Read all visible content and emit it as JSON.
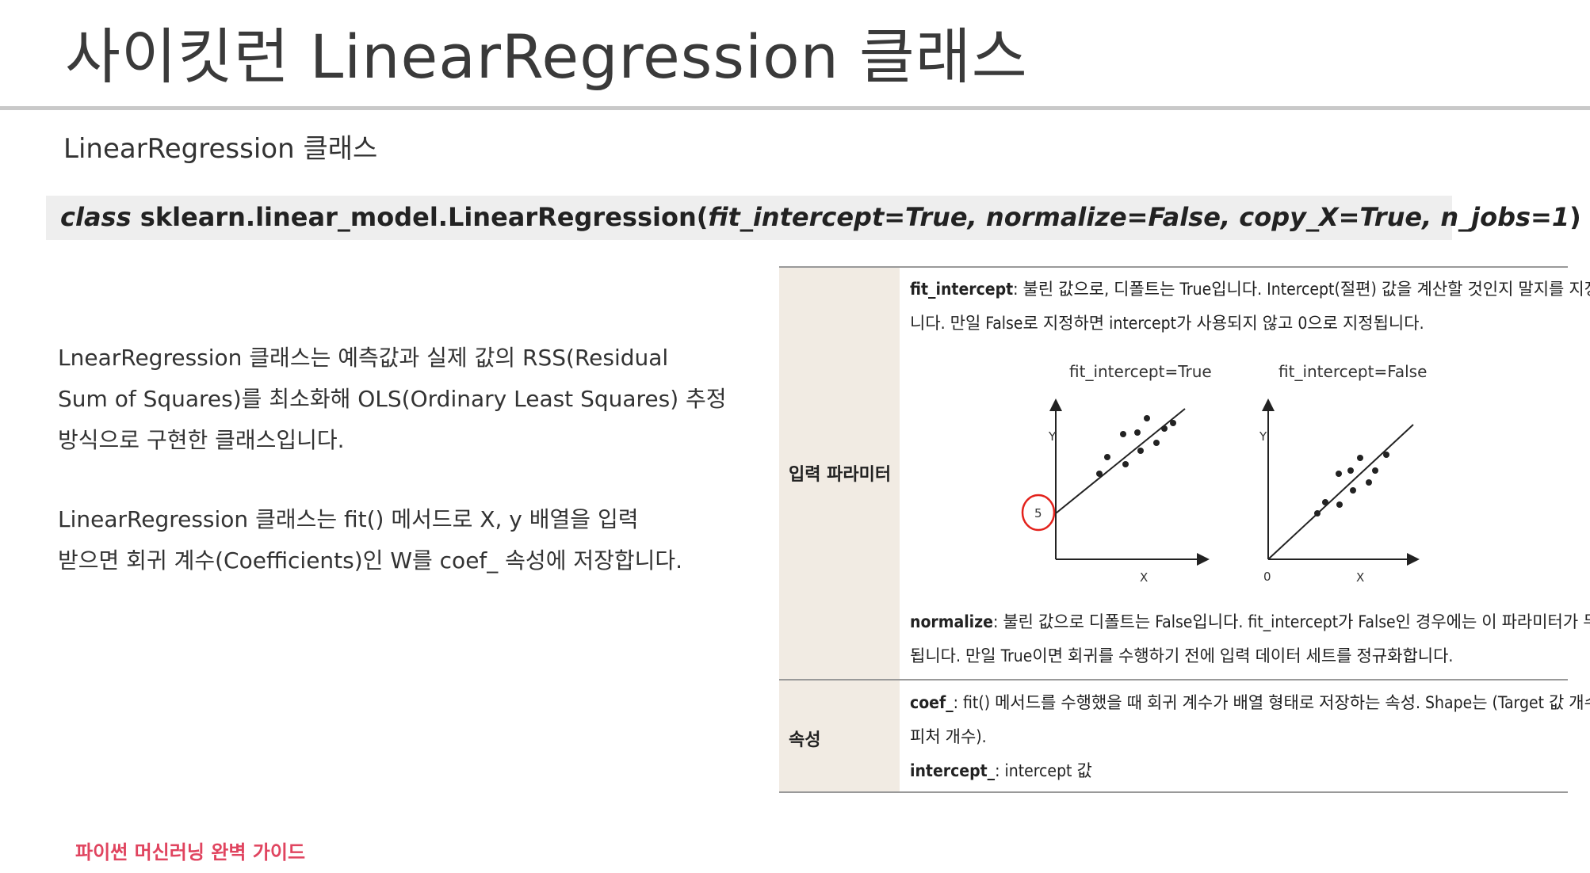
{
  "slide": {
    "title": "사이킷런 LinearRegression 클래스",
    "subtitle": "LinearRegression 클래스",
    "signature": {
      "keyword": "class",
      "qualname": "sklearn.linear_model.LinearRegression(",
      "params": "fit_intercept=True, normalize=False, copy_X=True, n_jobs=1",
      "close": ")"
    },
    "paragraph1": [
      "LnearRegression 클래스는 예측값과 실제 값의 RSS(Residual",
      "Sum of Squares)를 최소화해 OLS(Ordinary Least Squares) 추정",
      "방식으로 구현한 클래스입니다."
    ],
    "paragraph2": [
      "LinearRegression 클래스는 fit() 메서드로 X, y 배열을 입력",
      "받으면 회귀 계수(Coefficients)인 W를 coef_ 속성에 저장합니다."
    ],
    "footer": "파이썬 머신러닝 완벽 가이드"
  },
  "table": {
    "row1_label": "입력 파라미터",
    "fit_intercept": {
      "name": "fit_intercept",
      "line1": ": 불린 값으로, 디폴트는 True입니다. Intercept(절편) 값을 계산할 것인지 말지를 지정합",
      "line2": "니다. 만일 False로 지정하면 intercept가 사용되지 않고 0으로 지정됩니다."
    },
    "plots": {
      "left_title": "fit_intercept=True",
      "right_title": "fit_intercept=False",
      "y_label": "Y",
      "x_label": "X",
      "intercept_mark": "5",
      "origin_label": "0"
    },
    "normalize": {
      "name": "normalize",
      "line1": ": 불린 값으로 디폴트는 False입니다. fit_intercept가 False인 경우에는 이 파라미터가 무시",
      "line2": "됩니다. 만일 True이면 회귀를 수행하기 전에 입력 데이터 세트를 정규화합니다."
    },
    "row2_label": "속성",
    "coef": {
      "name": "coef_",
      "line1": ": fit() 메서드를 수행했을 때 회귀 계수가 배열 형태로 저장하는 속성. Shape는 (Target 값 개수,",
      "line2": "피처 개수)."
    },
    "intercept": {
      "name": "intercept_",
      "text": ": intercept 값"
    }
  },
  "colors": {
    "accent_footer": "#e0445f",
    "annotation_red": "#e3221c",
    "header_rule": "#c9c9c9",
    "table_label_bg": "#f1ebe3"
  }
}
